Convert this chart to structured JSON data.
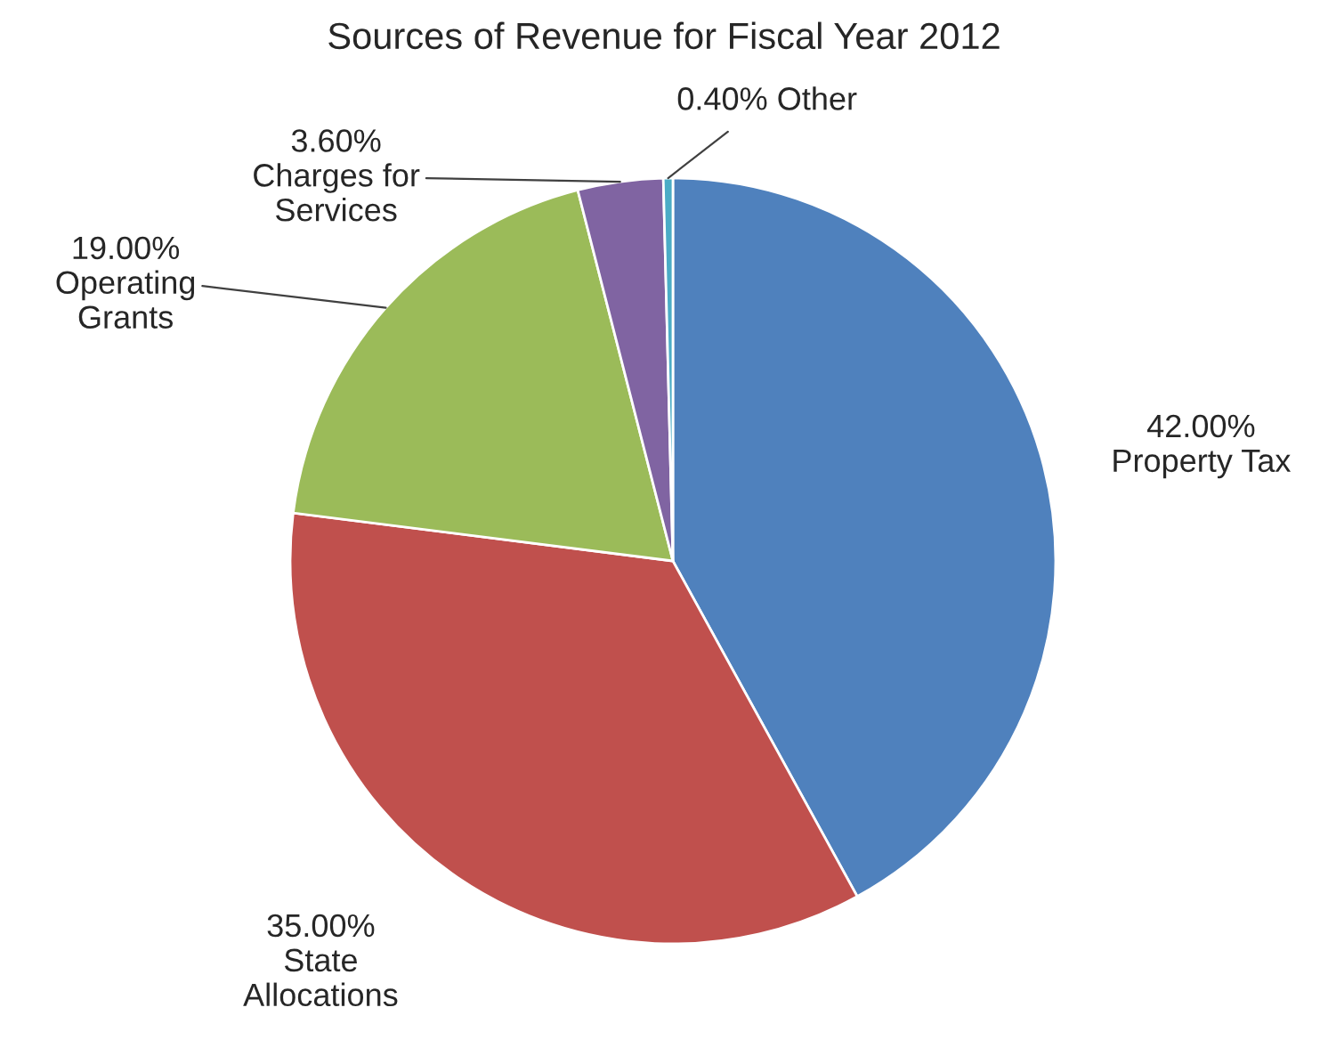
{
  "chart_data": {
    "type": "pie",
    "title": "Sources of Revenue for Fiscal Year 2012",
    "categories": [
      "Property Tax",
      "State Allocations",
      "Operating Grants",
      "Charges for Services",
      "Other"
    ],
    "values": [
      42,
      35,
      19,
      3.6,
      0.4
    ],
    "value_labels": [
      "42.00%",
      "35.00%",
      "19.00%",
      "3.60%",
      "0.40%"
    ],
    "colors": [
      "#4f81bd",
      "#c0504d",
      "#9bbb59",
      "#8064a2",
      "#4bacc6"
    ],
    "legend": false
  }
}
